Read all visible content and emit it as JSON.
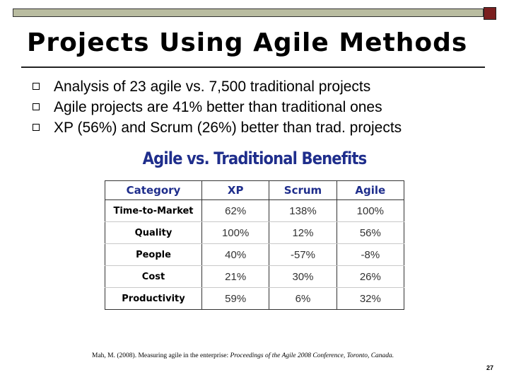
{
  "slide": {
    "title": "Projects Using Agile Methods",
    "bullets": [
      "Analysis of 23 agile vs. 7,500 traditional projects",
      "Agile projects are 41% better than traditional ones",
      "XP (56%) and Scrum (26%) better than trad. projects"
    ],
    "page_number": "27",
    "colors": {
      "accent_bar": "#b9bca0",
      "accent_square": "#7a1f1f",
      "table_header": "#1f2e8c"
    }
  },
  "table": {
    "heading": "Agile vs. Traditional Benefits",
    "columns": [
      "Category",
      "XP",
      "Scrum",
      "Agile"
    ],
    "rows": [
      {
        "category": "Time-to-Market",
        "xp": "62%",
        "scrum": "138%",
        "agile": "100%"
      },
      {
        "category": "Quality",
        "xp": "100%",
        "scrum": "12%",
        "agile": "56%"
      },
      {
        "category": "People",
        "xp": "40%",
        "scrum": "-57%",
        "agile": "-8%"
      },
      {
        "category": "Cost",
        "xp": "21%",
        "scrum": "30%",
        "agile": "26%"
      },
      {
        "category": "Productivity",
        "xp": "59%",
        "scrum": "6%",
        "agile": "32%"
      }
    ]
  },
  "citation": {
    "prefix": "Mah, M. (2008). Measuring agile in the enterprise: ",
    "source": "Proceedings of the Agile 2008 Conference, Toronto, Canada."
  }
}
